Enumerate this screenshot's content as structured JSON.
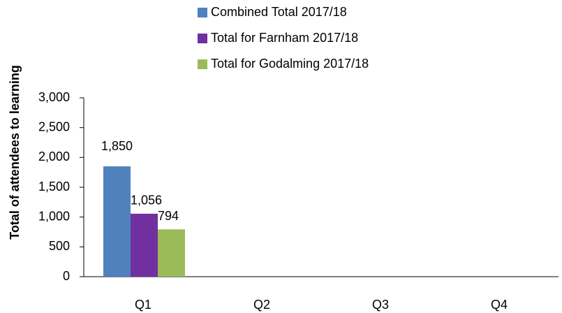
{
  "chart_data": {
    "type": "bar",
    "y_label": "Total of attendees to learning",
    "categories": [
      "Q1",
      "Q2",
      "Q3",
      "Q4"
    ],
    "series": [
      {
        "name": "Combined Total 2017/18",
        "color": "#4f81bd",
        "values": [
          1850,
          null,
          null,
          null
        ],
        "value_labels": [
          "1,850",
          null,
          null,
          null
        ]
      },
      {
        "name": "Total for Farnham 2017/18",
        "color": "#7030a0",
        "values": [
          1056,
          null,
          null,
          null
        ],
        "value_labels": [
          "1,056",
          null,
          null,
          null
        ]
      },
      {
        "name": "Total for Godalming 2017/18",
        "color": "#9bbb59",
        "values": [
          794,
          null,
          null,
          null
        ],
        "value_labels": [
          "794",
          null,
          null,
          null
        ]
      }
    ],
    "ylim": [
      0,
      3000
    ],
    "yticks": [
      0,
      500,
      {
        "value": 1000,
        "label": "1,000"
      },
      {
        "value": 1500,
        "label": "1,500"
      },
      {
        "value": 2000,
        "label": "2,000"
      },
      {
        "value": 2500,
        "label": "2,500"
      },
      {
        "value": 3000,
        "label": "3,000"
      }
    ],
    "legend": "top"
  }
}
